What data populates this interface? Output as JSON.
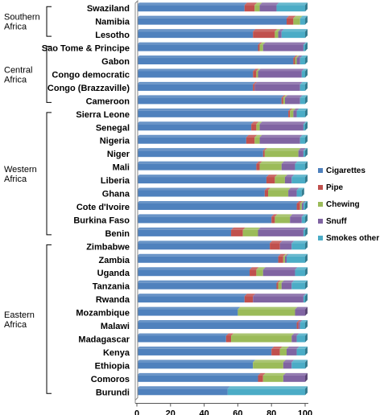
{
  "chart_data": {
    "type": "bar",
    "orientation": "horizontal",
    "stacked": true,
    "title": "",
    "xlabel": "",
    "ylabel": "",
    "xlim": [
      0,
      100
    ],
    "x_ticks": [
      "0",
      "20",
      "40",
      "60",
      "80",
      "100"
    ],
    "grid": false,
    "legend_position": "right",
    "categories": [
      "Swaziland",
      "Namibia",
      "Lesotho",
      "Sao Tome & Principe",
      "Gabon",
      "Congo democratic",
      "Congo (Brazzaville)",
      "Cameroon",
      "Sierra Leone",
      "Senegal",
      "Nigeria",
      "Niger",
      "Mali",
      "Liberia",
      "Ghana",
      "Cote d'Ivoire",
      "Burkina Faso",
      "Benin",
      "Zimbabwe",
      "Zambia",
      "Uganda",
      "Tanzania",
      "Rwanda",
      "Mozambique",
      "Malawi",
      "Madagascar",
      "Kenya",
      "Ethiopia",
      "Comoros",
      "Burundi"
    ],
    "groups": [
      {
        "name": "Southern Africa",
        "lines": [
          "Southern",
          "Africa"
        ],
        "from": 0,
        "to": 2
      },
      {
        "name": "Central Africa",
        "lines": [
          "Central",
          "Africa"
        ],
        "from": 3,
        "to": 7
      },
      {
        "name": "Western Africa",
        "lines": [
          "Western",
          "Africa"
        ],
        "from": 8,
        "to": 17
      },
      {
        "name": "Eastern Africa",
        "lines": [
          "Eastern",
          "Africa"
        ],
        "from": 18,
        "to": 29
      }
    ],
    "series": [
      {
        "name": "Cigarettes",
        "color": "#4f81bd",
        "values": [
          64,
          89,
          69,
          72,
          93,
          69,
          69,
          86,
          90,
          68,
          65,
          75,
          71,
          77,
          76,
          95,
          80,
          56,
          79,
          84,
          67,
          83,
          64,
          60,
          95,
          53,
          80,
          69,
          72,
          54
        ]
      },
      {
        "name": "Pipe",
        "color": "#c0504d",
        "values": [
          6,
          4,
          13,
          1,
          1,
          2,
          1,
          1,
          1,
          3,
          5,
          1,
          2,
          5,
          2,
          2,
          2,
          7,
          6,
          3,
          4,
          1,
          5,
          0,
          1,
          3,
          5,
          0,
          3,
          0
        ]
      },
      {
        "name": "Chewing",
        "color": "#9bbb59",
        "values": [
          3,
          4,
          2,
          2,
          1,
          1,
          0,
          1,
          2,
          2,
          3,
          20,
          13,
          6,
          12,
          1,
          9,
          9,
          0,
          1,
          4,
          2,
          0,
          34,
          0,
          36,
          4,
          18,
          12,
          0
        ]
      },
      {
        "name": "Snuff",
        "color": "#8064a2",
        "values": [
          10,
          0,
          2,
          24,
          2,
          26,
          27,
          9,
          2,
          26,
          24,
          3,
          8,
          4,
          5,
          1,
          7,
          27,
          7,
          1,
          19,
          6,
          30,
          6,
          1,
          3,
          6,
          5,
          13,
          0
        ]
      },
      {
        "name": "Smokes other",
        "color": "#4bacc6",
        "values": [
          17,
          3,
          14,
          1,
          3,
          2,
          3,
          3,
          5,
          1,
          3,
          1,
          6,
          8,
          3,
          1,
          2,
          1,
          8,
          11,
          6,
          8,
          1,
          0,
          3,
          5,
          5,
          8,
          0,
          46
        ]
      }
    ]
  }
}
